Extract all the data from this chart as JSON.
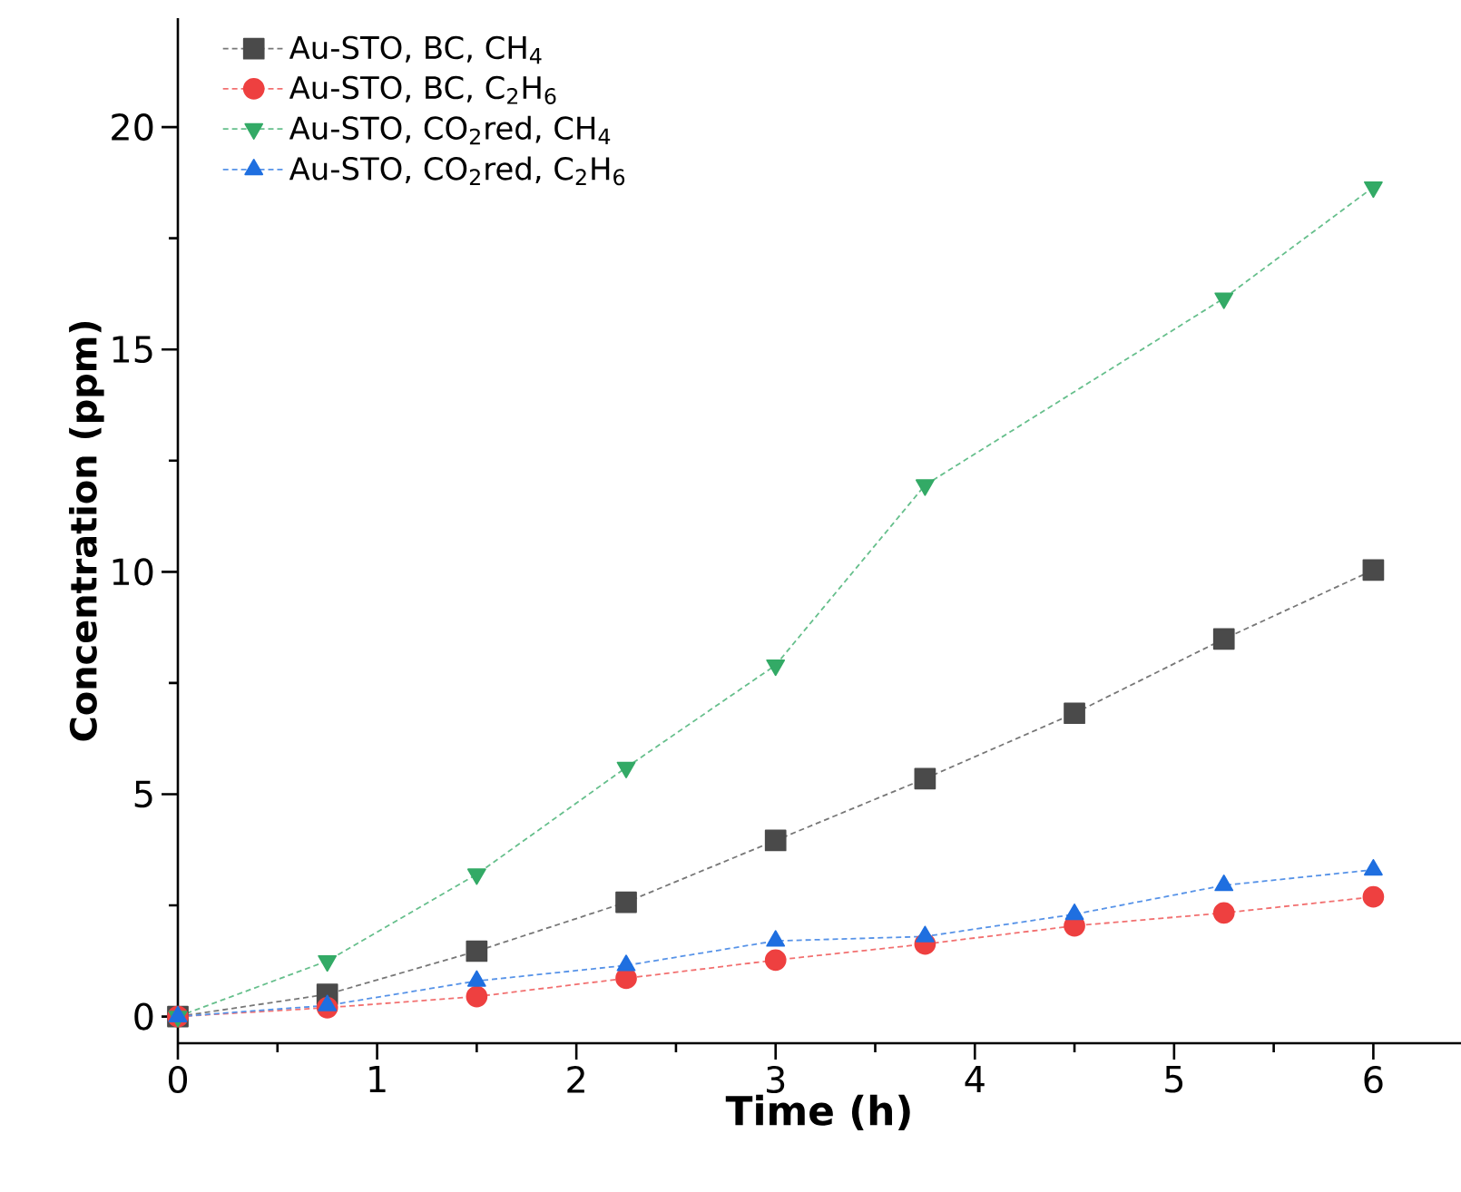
{
  "chart_data": {
    "type": "line",
    "xlabel": "Time (h)",
    "ylabel": "Concentration (ppm)",
    "xlim": [
      0,
      6.44
    ],
    "ylim": [
      -0.6,
      22.45
    ],
    "xticks": [
      0,
      1,
      2,
      3,
      4,
      5,
      6
    ],
    "yticks": [
      0,
      5,
      10,
      15,
      20
    ],
    "legend": "top left",
    "line_style": "dotted",
    "grid": false,
    "series": [
      {
        "name": "Au-STO, BC, CH$_{4}$",
        "color": "#4a4a4a",
        "marker": "square",
        "x": [
          0,
          0.75,
          1.5,
          2.25,
          3,
          3.75,
          4.5,
          5.25,
          6
        ],
        "values": [
          0,
          0.5,
          1.47,
          2.57,
          3.96,
          5.35,
          6.82,
          8.49,
          10.04
        ]
      },
      {
        "name": "Au-STO, BC, C$_{2}$H$_{6}$",
        "color": "#ee4040",
        "marker": "circle",
        "x": [
          0,
          0.75,
          1.5,
          2.25,
          3,
          3.75,
          4.5,
          5.25,
          6
        ],
        "values": [
          0,
          0.2,
          0.45,
          0.86,
          1.27,
          1.63,
          2.04,
          2.33,
          2.69
        ]
      },
      {
        "name": "Au-STO, CO$_{2}$red, CH$_{4}$",
        "color": "#33aa66",
        "marker": "triangle-down",
        "x": [
          0,
          0.75,
          1.5,
          2.25,
          3,
          3.75,
          5.25,
          6
        ],
        "values": [
          0,
          1.25,
          3.2,
          5.6,
          7.9,
          11.95,
          16.15,
          18.65
        ]
      },
      {
        "name": "Au-STO, CO$_{2}$red, C$_{2}$H$_{6}$",
        "color": "#1f6fe0",
        "marker": "triangle",
        "x": [
          0,
          0.75,
          1.5,
          2.25,
          3,
          3.75,
          4.5,
          5.25,
          6
        ],
        "values": [
          0,
          0.25,
          0.8,
          1.15,
          1.7,
          1.8,
          2.3,
          2.95,
          3.3
        ]
      }
    ]
  }
}
